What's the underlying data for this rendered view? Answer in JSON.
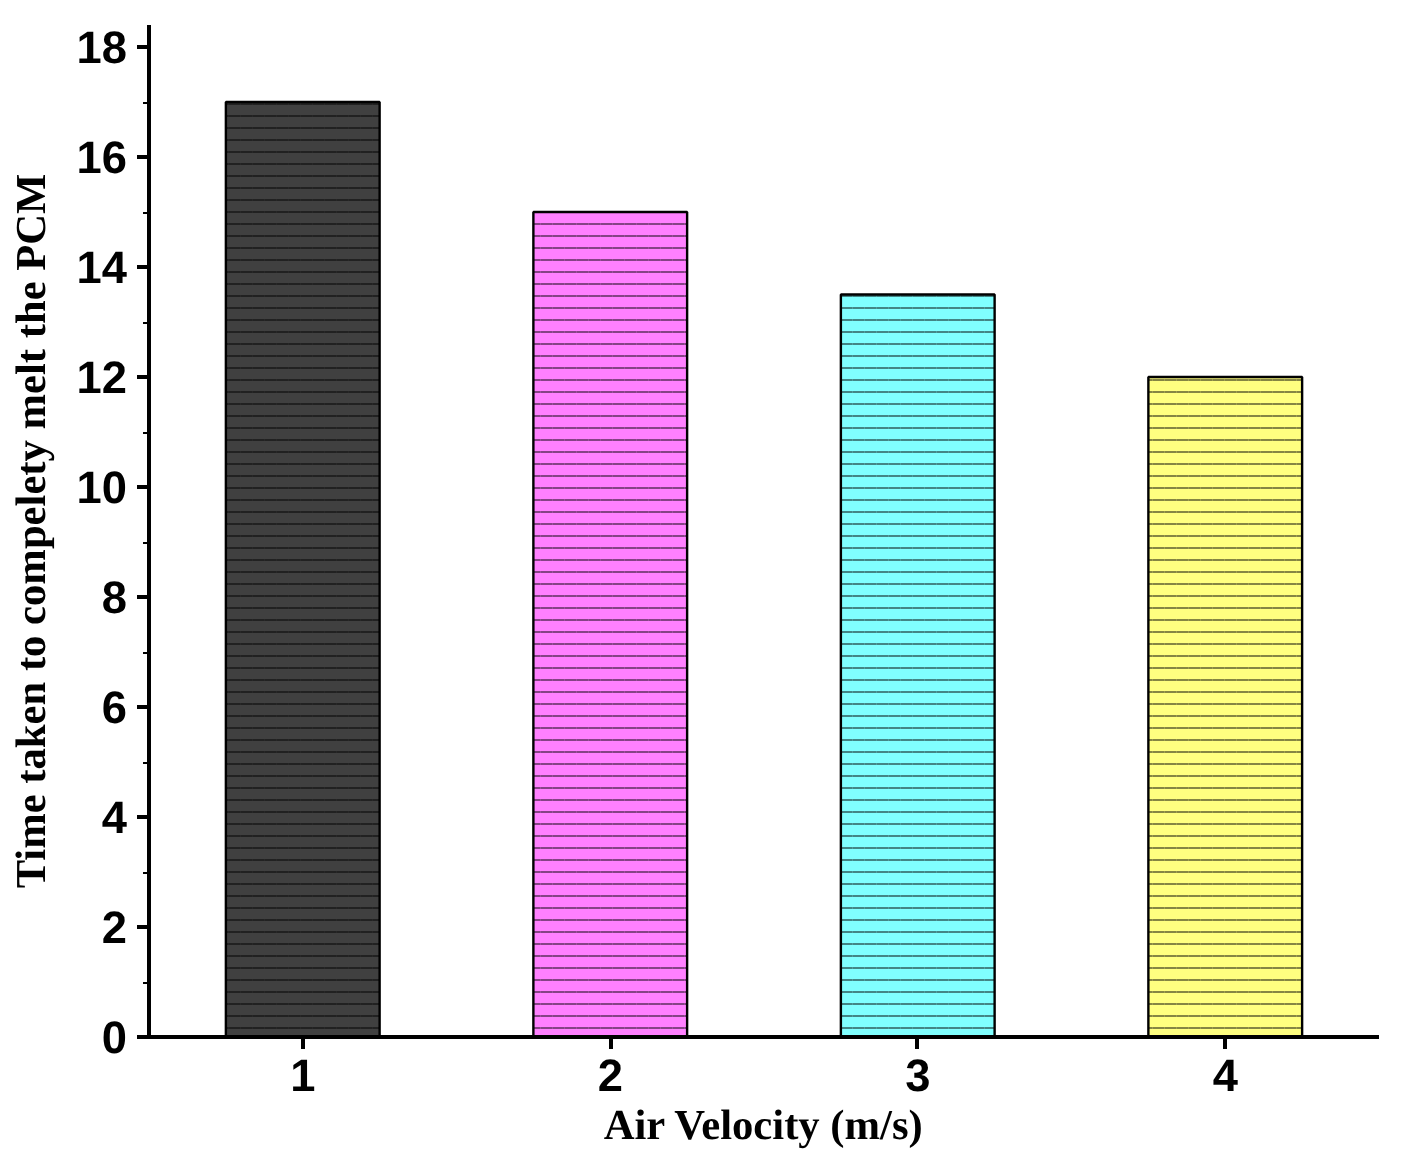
{
  "chart_data": {
    "type": "bar",
    "xlabel": "Air Velocity (m/s)",
    "ylabel": "Time taken to compelety melt the PCM",
    "categories": [
      "1",
      "2",
      "3",
      "4"
    ],
    "values": [
      17,
      15,
      13.5,
      12
    ],
    "colors": [
      "#404040",
      "#ff80ff",
      "#80ffff",
      "#ffff80"
    ],
    "ylim": [
      0,
      18.4
    ],
    "yticks": [
      0,
      2,
      4,
      6,
      8,
      10,
      12,
      14,
      16,
      18
    ],
    "grid": false
  }
}
